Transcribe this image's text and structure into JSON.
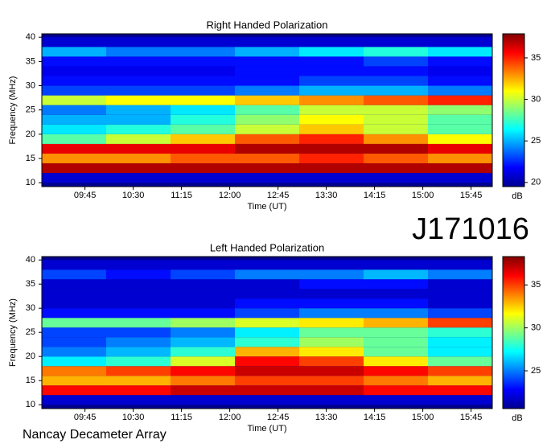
{
  "chart_data": [
    {
      "type": "heatmap",
      "title": "Right Handed Polarization",
      "xlabel": "Time (UT)",
      "ylabel": "Frequency (MHz)",
      "colormap": "jet",
      "colorbar_label": "dB",
      "clim": [
        19.5,
        37.9
      ],
      "cticks": [
        20,
        25,
        30,
        35
      ],
      "xlim": [
        9.08,
        16.08
      ],
      "xticks": [
        {
          "value": 9.75,
          "label": "09:45"
        },
        {
          "value": 10.5,
          "label": "10:30"
        },
        {
          "value": 11.25,
          "label": "11:15"
        },
        {
          "value": 12,
          "label": "12:00"
        },
        {
          "value": 12.75,
          "label": "12:45"
        },
        {
          "value": 13.5,
          "label": "13:30"
        },
        {
          "value": 14.25,
          "label": "14:15"
        },
        {
          "value": 15,
          "label": "15:00"
        },
        {
          "value": 15.75,
          "label": "15:45"
        }
      ],
      "ylim": [
        9.2,
        40.7
      ],
      "yticks": [
        10,
        15,
        20,
        25,
        30,
        35,
        40
      ],
      "x_bins": [
        9.08,
        10.08,
        11.08,
        12.08,
        13.08,
        14.08,
        15.08,
        16.08
      ],
      "y_bins": [
        10,
        12,
        14,
        16,
        18,
        20,
        22,
        24,
        26,
        28,
        30,
        32,
        34,
        36,
        38,
        40
      ],
      "values": [
        [
          21,
          21,
          21,
          21,
          21,
          21,
          21
        ],
        [
          37,
          37,
          37,
          37,
          37,
          37,
          37
        ],
        [
          33,
          33,
          34,
          34,
          35,
          34,
          33
        ],
        [
          36,
          36,
          36,
          37,
          37,
          37,
          36
        ],
        [
          28,
          30,
          32,
          34,
          35,
          33,
          31
        ],
        [
          26,
          27,
          28,
          30,
          32,
          30,
          28
        ],
        [
          25,
          25,
          27,
          29,
          31,
          30,
          28
        ],
        [
          24,
          25,
          26,
          28,
          30,
          30,
          29
        ],
        [
          30,
          31,
          31,
          32,
          33,
          34,
          35
        ],
        [
          23,
          23,
          23,
          24,
          25,
          25,
          24
        ],
        [
          22,
          22,
          22,
          22,
          23,
          23,
          22
        ],
        [
          21.5,
          21.5,
          21.5,
          22,
          22,
          22,
          21.5
        ],
        [
          22,
          22,
          22,
          22,
          22,
          23,
          22
        ],
        [
          25,
          24,
          24,
          25,
          26,
          27,
          26
        ],
        [
          21,
          21,
          21,
          21,
          21,
          21,
          21
        ]
      ]
    },
    {
      "type": "heatmap",
      "title": "Left Handed Polarization",
      "xlabel": "Time (UT)",
      "ylabel": "Frequency (MHz)",
      "colormap": "jet",
      "colorbar_label": "dB",
      "clim": [
        20.6,
        38.3
      ],
      "cticks": [
        25,
        30,
        35
      ],
      "xlim": [
        9.08,
        16.08
      ],
      "xticks": [
        {
          "value": 9.75,
          "label": "09:45"
        },
        {
          "value": 10.5,
          "label": "10:30"
        },
        {
          "value": 11.25,
          "label": "11:15"
        },
        {
          "value": 12,
          "label": "12:00"
        },
        {
          "value": 12.75,
          "label": "12:45"
        },
        {
          "value": 13.5,
          "label": "13:30"
        },
        {
          "value": 14.25,
          "label": "14:15"
        },
        {
          "value": 15,
          "label": "15:00"
        },
        {
          "value": 15.75,
          "label": "15:45"
        }
      ],
      "ylim": [
        9.2,
        40.7
      ],
      "yticks": [
        10,
        15,
        20,
        25,
        30,
        35,
        40
      ],
      "x_bins": [
        9.08,
        10.08,
        11.08,
        12.08,
        13.08,
        14.08,
        15.08,
        16.08
      ],
      "y_bins": [
        10,
        12,
        14,
        16,
        18,
        20,
        22,
        24,
        26,
        28,
        30,
        32,
        34,
        36,
        38,
        40
      ],
      "values": [
        [
          22,
          22,
          22,
          22,
          22,
          22,
          22
        ],
        [
          36,
          36,
          37,
          37,
          37,
          36,
          36
        ],
        [
          33,
          33,
          34,
          35,
          35,
          34,
          33
        ],
        [
          34,
          35,
          36,
          37,
          37,
          36,
          35
        ],
        [
          27,
          28,
          31,
          36,
          35,
          32,
          29
        ],
        [
          25,
          26,
          28,
          33,
          32,
          29,
          27
        ],
        [
          24,
          25,
          26,
          28,
          30,
          29,
          27
        ],
        [
          24,
          24,
          25,
          27,
          29,
          29,
          28
        ],
        [
          29,
          29,
          30,
          31,
          32,
          33,
          35
        ],
        [
          23,
          23,
          23,
          24,
          25,
          25,
          24
        ],
        [
          22,
          22,
          22,
          23,
          23,
          23,
          22
        ],
        [
          22,
          22,
          22,
          22,
          22,
          22,
          22
        ],
        [
          22,
          22,
          22,
          22,
          23,
          23,
          22
        ],
        [
          24,
          23,
          24,
          25,
          25,
          26,
          25
        ],
        [
          22,
          22,
          22,
          22,
          22,
          22,
          22
        ]
      ]
    }
  ],
  "object_label": "J171016",
  "footer": "Nancay Decameter Array"
}
